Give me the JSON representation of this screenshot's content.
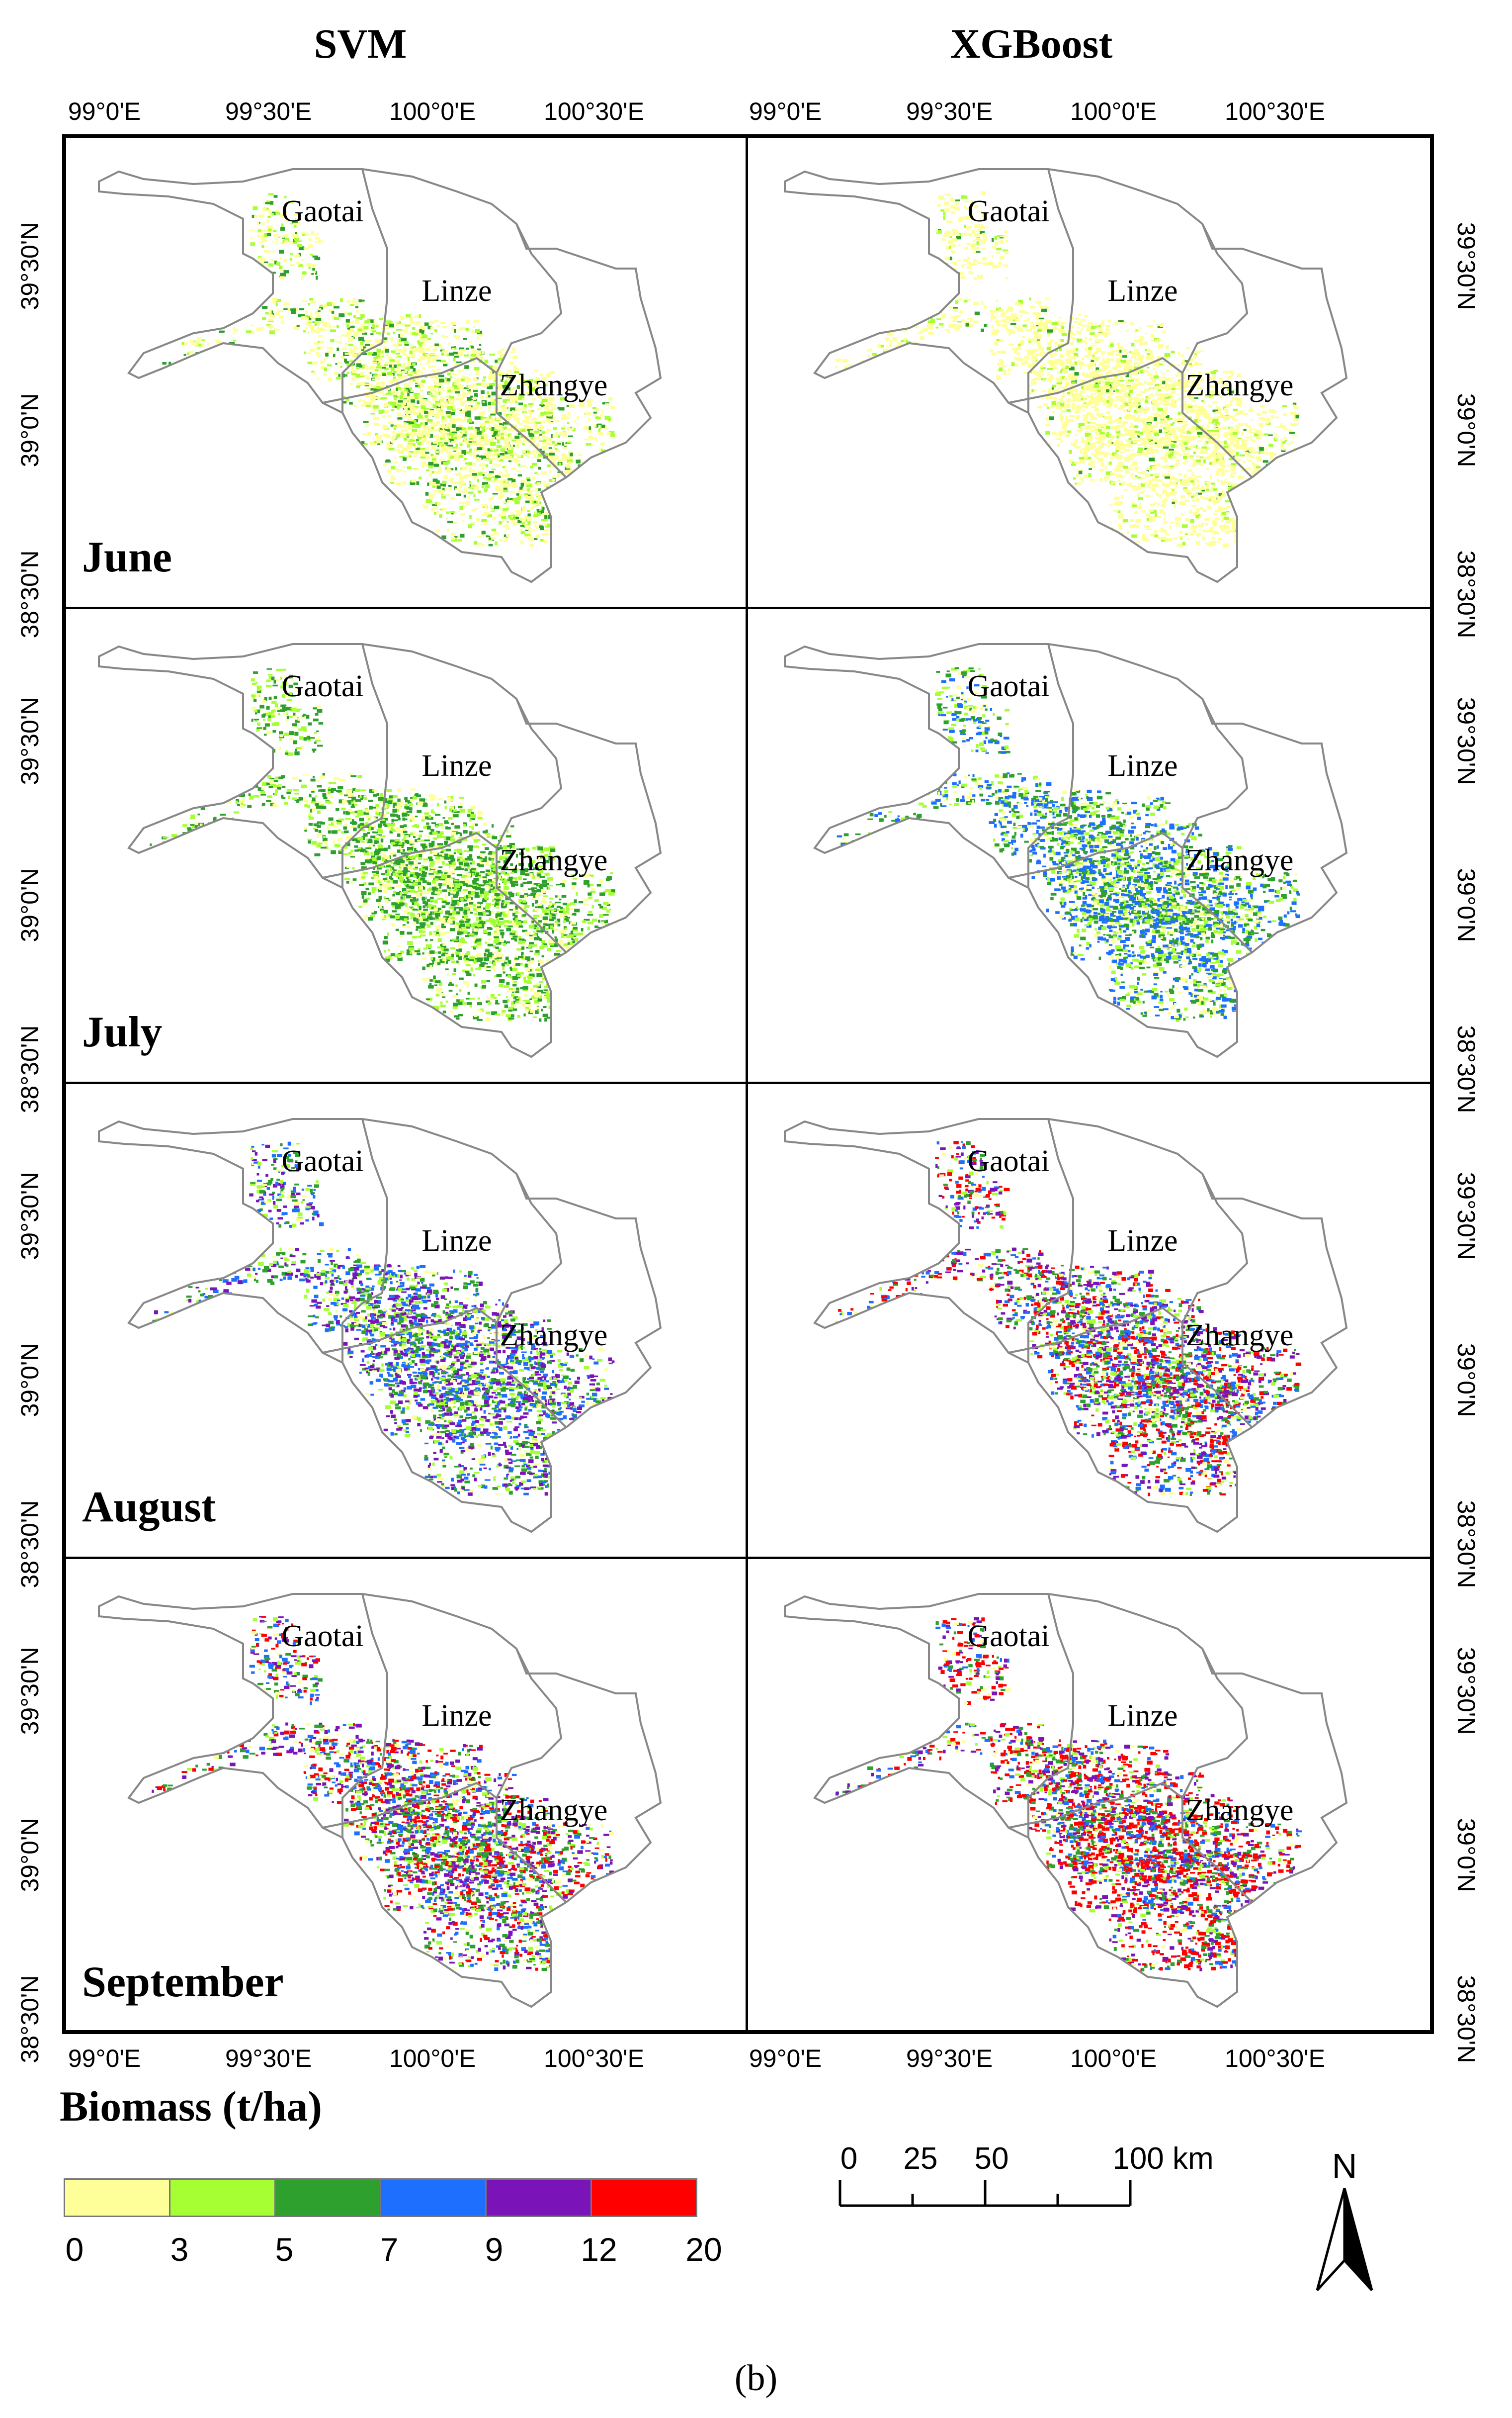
{
  "columns": [
    "SVM",
    "XGBoost"
  ],
  "lon_ticks": [
    "99°0'E",
    "99°30'E",
    "100°0'E",
    "100°30'E"
  ],
  "lat_ticks": [
    "39°30'N",
    "39°0'N",
    "38°30'N"
  ],
  "rows": [
    {
      "month": "June",
      "svm_class": 0,
      "xgb_class": 0
    },
    {
      "month": "July",
      "svm_class": 2,
      "xgb_class": 3
    },
    {
      "month": "August",
      "svm_class": 4,
      "xgb_class": 5
    },
    {
      "month": "September",
      "svm_class": 5,
      "xgb_class": 6
    }
  ],
  "counties": [
    "Gaotai",
    "Linze",
    "Zhangye"
  ],
  "legend": {
    "title": "Biomass (t/ha)",
    "breaks": [
      "0",
      "3",
      "5",
      "7",
      "9",
      "12",
      "20"
    ],
    "colors": [
      "#ffff99",
      "#a6ff33",
      "#2ea02e",
      "#1f6fff",
      "#7b14b8",
      "#ff0000"
    ]
  },
  "scale_bar": {
    "labels": [
      "0",
      "25",
      "50",
      "100 km"
    ]
  },
  "north_arrow": {
    "label": "N",
    "icon": "north-arrow-icon"
  },
  "caption": "(b)"
}
